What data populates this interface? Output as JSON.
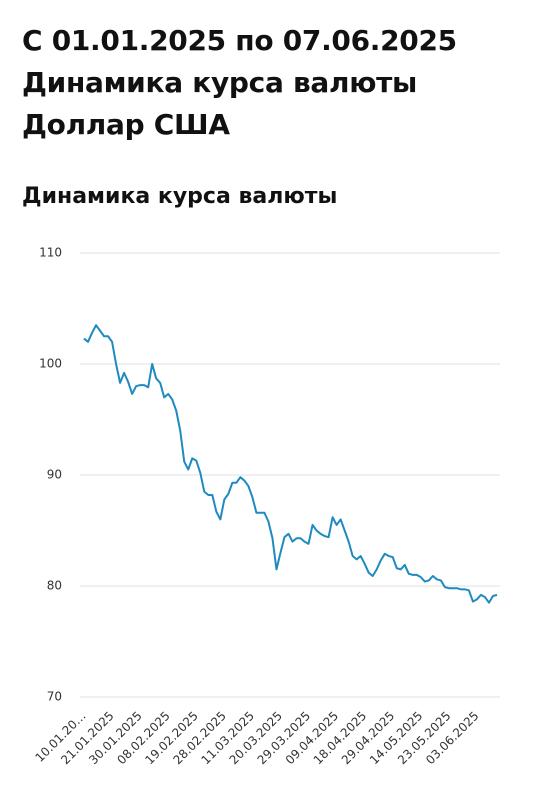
{
  "header": {
    "period": "С 01.01.2025 по 07.06.2025",
    "title": "Динамика курса валюты",
    "currency": "Доллар США"
  },
  "chart_data": {
    "type": "line",
    "title": "Динамика курса валюты",
    "categories": [
      "10.01.20…",
      null,
      null,
      null,
      null,
      null,
      null,
      "21.01.2025",
      null,
      null,
      null,
      null,
      null,
      null,
      "30.01.2025",
      null,
      null,
      null,
      null,
      null,
      null,
      "08.02.2025",
      null,
      null,
      null,
      null,
      null,
      null,
      "19.02.2025",
      null,
      null,
      null,
      null,
      null,
      null,
      "28.02.2025",
      null,
      null,
      null,
      null,
      null,
      null,
      "11.03.2025",
      null,
      null,
      null,
      null,
      null,
      null,
      "20.03.2025",
      null,
      null,
      null,
      null,
      null,
      null,
      "29.03.2025",
      null,
      null,
      null,
      null,
      null,
      null,
      "09.04.2025",
      null,
      null,
      null,
      null,
      null,
      null,
      "18.04.2025",
      null,
      null,
      null,
      null,
      null,
      null,
      "29.04.2025",
      null,
      null,
      null,
      null,
      null,
      null,
      "14.05.2025",
      null,
      null,
      null,
      null,
      null,
      null,
      "23.05.2025",
      null,
      null,
      null,
      null,
      null,
      null,
      "03.06.2025",
      null,
      null,
      null,
      null,
      null
    ],
    "values": [
      102.3,
      102.0,
      102.8,
      103.5,
      103.0,
      102.5,
      102.5,
      102.0,
      100.0,
      98.3,
      99.2,
      98.4,
      97.3,
      98.0,
      98.1,
      98.1,
      97.9,
      100.0,
      98.7,
      98.3,
      97.0,
      97.3,
      96.8,
      95.8,
      94.0,
      91.2,
      90.5,
      91.5,
      91.3,
      90.2,
      88.5,
      88.2,
      88.2,
      86.7,
      86.0,
      87.8,
      88.3,
      89.3,
      89.3,
      89.8,
      89.5,
      89.0,
      88.0,
      86.6,
      86.6,
      86.6,
      85.8,
      84.3,
      81.5,
      83.0,
      84.4,
      84.7,
      84.0,
      84.3,
      84.3,
      84.0,
      83.8,
      85.5,
      85.0,
      84.7,
      84.5,
      84.4,
      86.2,
      85.5,
      86.0,
      85.0,
      84.0,
      82.7,
      82.4,
      82.7,
      82.0,
      81.2,
      80.9,
      81.5,
      82.3,
      82.9,
      82.7,
      82.6,
      81.6,
      81.5,
      81.9,
      81.1,
      81.0,
      81.0,
      80.8,
      80.4,
      80.5,
      80.9,
      80.6,
      80.5,
      79.9,
      79.8,
      79.8,
      79.8,
      79.7,
      79.7,
      79.6,
      78.6,
      78.8,
      79.2,
      79.0,
      78.5,
      79.1,
      79.2
    ],
    "color": "#1f8ac0",
    "ylim": [
      70,
      110
    ],
    "yticks": [
      70,
      80,
      90,
      100,
      110
    ],
    "grid": true
  }
}
